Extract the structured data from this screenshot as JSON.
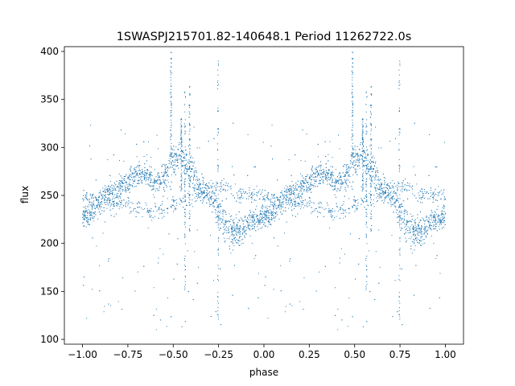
{
  "chart_data": {
    "type": "scatter",
    "title": "1SWASPJ215701.82-140648.1 Period 11262722.0s",
    "xlabel": "phase",
    "ylabel": "flux",
    "xlim": [
      -1.1,
      1.1
    ],
    "ylim": [
      95,
      405
    ],
    "grid": false,
    "legend": "none",
    "xticks": [
      -1.0,
      -0.75,
      -0.5,
      -0.25,
      0.0,
      0.25,
      0.5,
      0.75,
      1.0
    ],
    "xtick_labels": [
      "−1.00",
      "−0.75",
      "−0.50",
      "−0.25",
      "0.00",
      "0.25",
      "0.50",
      "0.75",
      "1.00"
    ],
    "yticks": [
      100,
      150,
      200,
      250,
      300,
      350,
      400
    ],
    "ytick_labels": [
      "100",
      "150",
      "200",
      "250",
      "300",
      "350",
      "400"
    ],
    "marker_color": "#1f77b4",
    "series": [
      {
        "name": "",
        "profile": [
          {
            "phase": 0.0,
            "flux": 228,
            "spread": 12
          },
          {
            "phase": 0.05,
            "flux": 232,
            "spread": 12
          },
          {
            "phase": 0.1,
            "flux": 245,
            "spread": 14
          },
          {
            "phase": 0.15,
            "flux": 255,
            "spread": 12
          },
          {
            "phase": 0.2,
            "flux": 258,
            "spread": 12
          },
          {
            "phase": 0.25,
            "flux": 262,
            "spread": 15
          },
          {
            "phase": 0.3,
            "flux": 275,
            "spread": 15
          },
          {
            "phase": 0.35,
            "flux": 272,
            "spread": 14
          },
          {
            "phase": 0.4,
            "flux": 262,
            "spread": 14
          },
          {
            "phase": 0.45,
            "flux": 268,
            "spread": 16
          },
          {
            "phase": 0.5,
            "flux": 285,
            "spread": 18
          },
          {
            "phase": 0.55,
            "flux": 295,
            "spread": 18
          },
          {
            "phase": 0.6,
            "flux": 272,
            "spread": 18
          },
          {
            "phase": 0.65,
            "flux": 258,
            "spread": 15
          },
          {
            "phase": 0.7,
            "flux": 250,
            "spread": 14
          },
          {
            "phase": 0.75,
            "flux": 232,
            "spread": 22
          },
          {
            "phase": 0.8,
            "flux": 215,
            "spread": 20
          },
          {
            "phase": 0.85,
            "flux": 212,
            "spread": 18
          },
          {
            "phase": 0.9,
            "flux": 218,
            "spread": 15
          },
          {
            "phase": 0.95,
            "flux": 225,
            "spread": 12
          },
          {
            "phase": 1.0,
            "flux": 228,
            "spread": 12
          }
        ],
        "secondary_branch": [
          {
            "phase": 0.0,
            "flux": 250
          },
          {
            "phase": 0.2,
            "flux": 240
          },
          {
            "phase": 0.4,
            "flux": 232
          },
          {
            "phase": 0.6,
            "flux": 248
          },
          {
            "phase": 0.75,
            "flux": 262
          },
          {
            "phase": 0.85,
            "flux": 252
          },
          {
            "phase": 1.0,
            "flux": 250
          }
        ],
        "spikes": [
          {
            "phase": 0.488,
            "flux_min": 290,
            "flux_max": 400
          },
          {
            "phase": 0.747,
            "flux_min": 120,
            "flux_max": 390
          },
          {
            "phase": 0.565,
            "flux_min": 150,
            "flux_max": 360
          },
          {
            "phase": 0.59,
            "flux_min": 210,
            "flux_max": 365
          },
          {
            "phase": 0.545,
            "flux_min": 250,
            "flux_max": 330
          }
        ],
        "outlier_range": [
          110,
          400
        ]
      }
    ]
  }
}
